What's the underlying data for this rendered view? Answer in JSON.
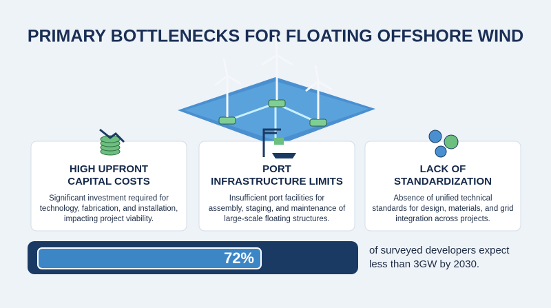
{
  "header": {
    "title": "PRIMARY BOTTLENECKS FOR FLOATING OFFSHORE WIND"
  },
  "cards": [
    {
      "title": [
        "HIGH UPFRONT",
        "CAPITAL COSTS"
      ],
      "text": [
        "Significant investment required for",
        "technology, fabrication, and installation,",
        "impacting project viability."
      ]
    },
    {
      "title": [
        "PORT",
        "INFRASTRUCTURE LIMITS"
      ],
      "text": [
        "Insufficient port facilities for",
        "assembly, staging, and maintenance of",
        "large-scale floating structures."
      ]
    },
    {
      "title": [
        "LACK OF",
        "STANDARDIZATION"
      ],
      "text": [
        "Absence of unified technical",
        "standards for design, materials, and grid",
        "integration across projects."
      ]
    }
  ],
  "stat": {
    "value": 72,
    "label": "72%",
    "text": [
      "of surveyed developers expect",
      "less than 3GW by 2030."
    ]
  }
}
